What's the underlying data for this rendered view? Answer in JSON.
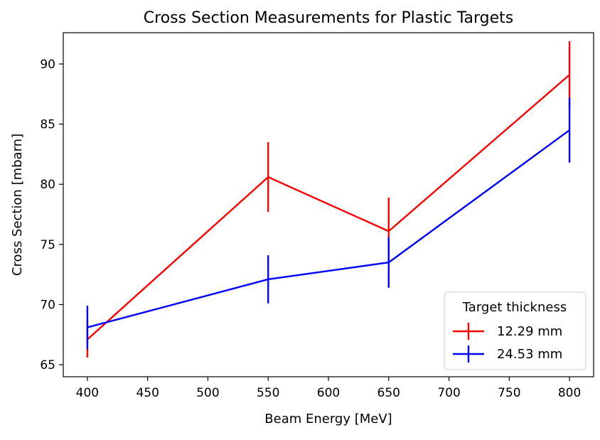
{
  "chart_data": {
    "type": "line",
    "title": "Cross Section Measurements for Plastic Targets",
    "xlabel": "Beam Energy [MeV]",
    "ylabel": "Cross Section [mbarn]",
    "x": [
      400,
      550,
      650,
      800
    ],
    "xlim": [
      380,
      820
    ],
    "ylim": [
      64,
      92.6
    ],
    "xticks": [
      400,
      450,
      500,
      550,
      600,
      650,
      700,
      750,
      800
    ],
    "yticks": [
      65,
      70,
      75,
      80,
      85,
      90
    ],
    "grid": false,
    "legend": {
      "title": "Target thickness",
      "placement": "bottom-right"
    },
    "series": [
      {
        "name": "12.29 mm",
        "color": "#ff0000",
        "values": [
          67.1,
          80.6,
          76.1,
          89.1
        ],
        "errors": [
          1.5,
          2.9,
          2.8,
          2.8
        ]
      },
      {
        "name": "24.53 mm",
        "color": "#0000ff",
        "values": [
          68.1,
          72.1,
          73.5,
          84.5
        ],
        "errors": [
          1.8,
          2.0,
          2.1,
          2.7
        ]
      }
    ]
  }
}
